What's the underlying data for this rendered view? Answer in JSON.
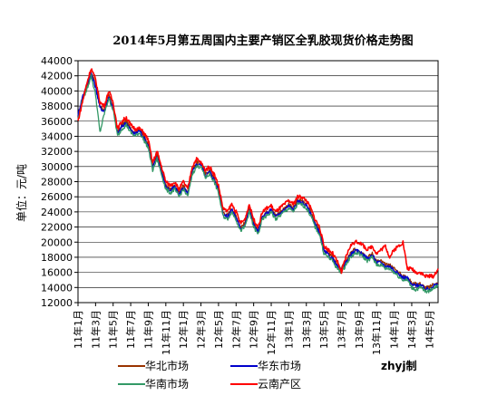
{
  "chart_data": {
    "type": "line",
    "title": "2014年5月第五周国内主要产销区全乳胶现货价格走势图",
    "ylabel": "单位：元/吨",
    "xlabel": "",
    "ylim": [
      12000,
      44000
    ],
    "ystep": 2000,
    "yticks": [
      "12000",
      "14000",
      "16000",
      "18000",
      "20000",
      "22000",
      "24000",
      "26000",
      "28000",
      "30000",
      "32000",
      "34000",
      "36000",
      "38000",
      "40000",
      "42000",
      "44000"
    ],
    "x_range": [
      0,
      41
    ],
    "x_ticks": [
      {
        "x": 0,
        "label": "11年1月"
      },
      {
        "x": 2,
        "label": "11年3月"
      },
      {
        "x": 4,
        "label": "11年5月"
      },
      {
        "x": 6,
        "label": "11年7月"
      },
      {
        "x": 8,
        "label": "11年9月"
      },
      {
        "x": 10,
        "label": "11年11月"
      },
      {
        "x": 12,
        "label": "12年1月"
      },
      {
        "x": 14,
        "label": "12年3月"
      },
      {
        "x": 16,
        "label": "12年5月"
      },
      {
        "x": 18,
        "label": "12年7月"
      },
      {
        "x": 20,
        "label": "12年9月"
      },
      {
        "x": 22,
        "label": "12年11月"
      },
      {
        "x": 24,
        "label": "13年1月"
      },
      {
        "x": 26,
        "label": "13年3月"
      },
      {
        "x": 28,
        "label": "13年5月"
      },
      {
        "x": 30,
        "label": "13年7月"
      },
      {
        "x": 32,
        "label": "13年9月"
      },
      {
        "x": 34,
        "label": "13年11月"
      },
      {
        "x": 36,
        "label": "14年1月"
      },
      {
        "x": 38,
        "label": "14年3月"
      },
      {
        "x": 40,
        "label": "14年5月"
      }
    ],
    "grid": true,
    "legend_position": "bottom",
    "series": [
      {
        "name": "华北市场",
        "color": "#993300",
        "x": [
          0,
          0.5,
          1,
          1.5,
          2,
          2.5,
          3,
          3.5,
          4,
          4.5,
          5,
          5.5,
          6,
          6.5,
          7,
          7.5,
          8,
          8.5,
          9,
          9.5,
          10,
          10.5,
          11,
          11.5,
          12,
          12.5,
          13,
          13.5,
          14,
          14.5,
          15,
          15.5,
          16,
          16.5,
          17,
          17.5,
          18,
          18.5,
          19,
          19.5,
          20,
          20.5,
          21,
          21.5,
          22,
          22.5,
          23,
          23.5,
          24,
          24.5,
          25,
          25.5,
          26,
          26.5,
          27,
          27.5,
          28,
          28.5,
          29,
          29.5,
          30,
          30.5,
          31,
          31.5,
          32,
          32.5,
          33,
          33.5,
          34,
          34.5,
          35,
          35.5,
          36,
          36.5,
          37,
          37.5,
          38,
          38.5,
          39,
          39.5,
          40,
          40.5,
          41
        ],
        "values": [
          36500,
          39000,
          40500,
          42500,
          41000,
          38000,
          37500,
          39500,
          38000,
          34500,
          35500,
          36000,
          35000,
          34500,
          35000,
          34000,
          33000,
          30000,
          31500,
          29500,
          27500,
          27000,
          27500,
          26500,
          27500,
          26500,
          29500,
          30500,
          30500,
          29000,
          29500,
          28500,
          27000,
          24000,
          23500,
          24500,
          23500,
          22000,
          22500,
          24500,
          22500,
          21500,
          23500,
          24000,
          24500,
          23500,
          24000,
          24500,
          25000,
          24500,
          25500,
          25500,
          25000,
          24000,
          22500,
          21500,
          19000,
          18500,
          18000,
          17000,
          16500,
          17500,
          18500,
          19000,
          19000,
          18500,
          18000,
          18500,
          17500,
          17500,
          17000,
          17000,
          16500,
          16000,
          15500,
          15500,
          14500,
          14500,
          14500,
          14000,
          14000,
          14500,
          14500
        ]
      },
      {
        "name": "华东市场",
        "color": "#0000cc",
        "x": [
          0,
          0.5,
          1,
          1.5,
          2,
          2.5,
          3,
          3.5,
          4,
          4.5,
          5,
          5.5,
          6,
          6.5,
          7,
          7.5,
          8,
          8.5,
          9,
          9.5,
          10,
          10.5,
          11,
          11.5,
          12,
          12.5,
          13,
          13.5,
          14,
          14.5,
          15,
          15.5,
          16,
          16.5,
          17,
          17.5,
          18,
          18.5,
          19,
          19.5,
          20,
          20.5,
          21,
          21.5,
          22,
          22.5,
          23,
          23.5,
          24,
          24.5,
          25,
          25.5,
          26,
          26.5,
          27,
          27.5,
          28,
          28.5,
          29,
          29.5,
          30,
          30.5,
          31,
          31.5,
          32,
          32.5,
          33,
          33.5,
          34,
          34.5,
          35,
          35.5,
          36,
          36.5,
          37,
          37.5,
          38,
          38.5,
          39,
          39.5,
          40,
          40.5,
          41
        ],
        "values": [
          36800,
          39200,
          40800,
          42300,
          40500,
          37800,
          37300,
          39200,
          37800,
          34300,
          35300,
          35800,
          34800,
          34300,
          34800,
          33800,
          32800,
          29800,
          31300,
          29300,
          27300,
          26800,
          27300,
          26300,
          27300,
          26300,
          29300,
          30300,
          30300,
          28800,
          29300,
          28300,
          26800,
          23800,
          23300,
          24300,
          23300,
          21800,
          22300,
          24300,
          22300,
          21300,
          23300,
          23800,
          24300,
          23300,
          23800,
          24300,
          24800,
          24300,
          25300,
          25300,
          24800,
          23800,
          22300,
          21300,
          18800,
          18300,
          17800,
          16800,
          16300,
          17300,
          18300,
          18800,
          18800,
          18300,
          17800,
          18300,
          17300,
          17300,
          16800,
          16800,
          16300,
          15800,
          15300,
          15300,
          14300,
          14300,
          14300,
          13800,
          13800,
          14300,
          14300
        ]
      },
      {
        "name": "华南市场",
        "color": "#339966",
        "x": [
          0,
          0.5,
          1,
          1.5,
          2,
          2.5,
          3,
          3.5,
          4,
          4.5,
          5,
          5.5,
          6,
          6.5,
          7,
          7.5,
          8,
          8.5,
          9,
          9.5,
          10,
          10.5,
          11,
          11.5,
          12,
          12.5,
          13,
          13.5,
          14,
          14.5,
          15,
          15.5,
          16,
          16.5,
          17,
          17.5,
          18,
          18.5,
          19,
          19.5,
          20,
          20.5,
          21,
          21.5,
          22,
          22.5,
          23,
          23.5,
          24,
          24.5,
          25,
          25.5,
          26,
          26.5,
          27,
          27.5,
          28,
          28.5,
          29,
          29.5,
          30,
          30.5,
          31,
          31.5,
          32,
          32.5,
          33,
          33.5,
          34,
          34.5,
          35,
          35.5,
          36,
          36.5,
          37,
          37.5,
          38,
          38.5,
          39,
          39.5,
          40,
          40.5,
          41
        ],
        "values": [
          36200,
          38800,
          40200,
          42000,
          39500,
          34500,
          37000,
          39000,
          37500,
          34000,
          35000,
          35500,
          34500,
          34000,
          34500,
          33500,
          32500,
          29500,
          31000,
          29000,
          27000,
          26500,
          27000,
          26000,
          27000,
          26000,
          29000,
          30000,
          30000,
          28500,
          29000,
          28000,
          26500,
          23500,
          23000,
          24000,
          23000,
          21500,
          22000,
          24000,
          22000,
          21000,
          23000,
          23500,
          24000,
          23000,
          23500,
          24000,
          24500,
          24000,
          25000,
          25000,
          24500,
          23500,
          22000,
          21000,
          18500,
          18000,
          17500,
          16500,
          16000,
          17000,
          18000,
          18500,
          18500,
          18000,
          17500,
          18000,
          17000,
          17000,
          16500,
          16500,
          16000,
          15500,
          15000,
          15000,
          14000,
          13700,
          14000,
          13500,
          13500,
          14000,
          14200
        ]
      },
      {
        "name": "云南产区",
        "color": "#ff0000",
        "x": [
          0,
          0.5,
          1,
          1.5,
          2,
          2.5,
          3,
          3.5,
          4,
          4.5,
          5,
          5.5,
          6,
          6.5,
          7,
          7.5,
          8,
          8.5,
          9,
          9.5,
          10,
          10.5,
          11,
          11.5,
          12,
          12.5,
          13,
          13.5,
          14,
          14.5,
          15,
          15.5,
          16,
          16.5,
          17,
          17.5,
          18,
          18.5,
          19,
          19.5,
          20,
          20.5,
          21,
          21.5,
          22,
          22.5,
          23,
          23.5,
          24,
          24.5,
          25,
          25.5,
          26,
          26.5,
          27,
          27.5,
          28,
          28.5,
          29,
          29.5,
          30,
          30.5,
          31,
          31.5,
          32,
          32.5,
          33,
          33.5,
          34,
          34.5,
          35,
          35.5,
          36,
          36.5,
          37,
          37.5,
          38,
          38.5,
          39,
          39.5,
          40,
          40.5,
          41
        ],
        "values": [
          36000,
          38500,
          41000,
          43000,
          41500,
          38500,
          38000,
          40000,
          38500,
          35000,
          36000,
          36500,
          35500,
          35000,
          35000,
          34500,
          33500,
          30500,
          32000,
          30000,
          28000,
          27500,
          28000,
          27000,
          28000,
          27000,
          30000,
          31000,
          30500,
          29500,
          30000,
          29000,
          27500,
          24500,
          24000,
          25000,
          24000,
          22500,
          23000,
          25000,
          23000,
          22000,
          24000,
          24500,
          24800,
          24000,
          24500,
          25000,
          25500,
          25000,
          26000,
          26000,
          25500,
          24500,
          23000,
          22000,
          19500,
          19000,
          18500,
          17500,
          16000,
          18000,
          19500,
          20000,
          20000,
          19500,
          19000,
          19500,
          18500,
          19000,
          19500,
          18000,
          19000,
          19500,
          20000,
          16500,
          16500,
          16000,
          16000,
          15500,
          15500,
          15500,
          16500
        ]
      }
    ],
    "credit": "zhyj制"
  }
}
